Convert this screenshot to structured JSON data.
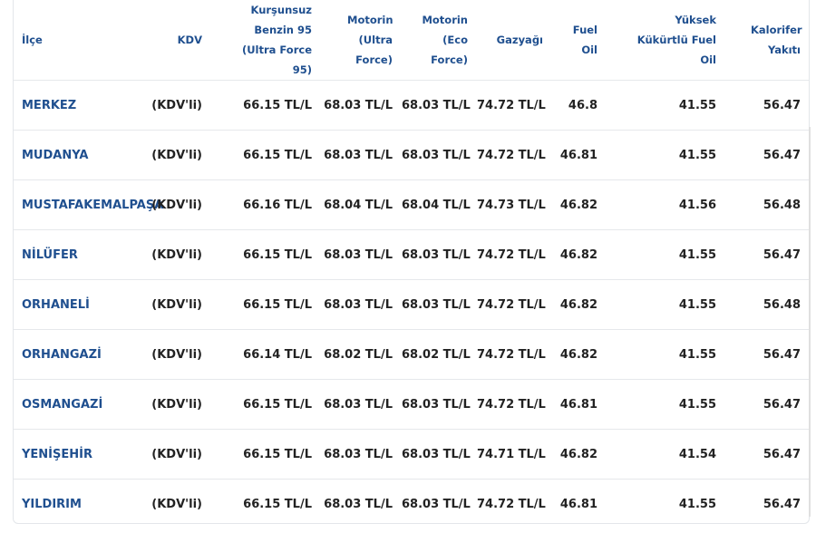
{
  "table": {
    "headers": [
      "İlçe",
      "KDV",
      "Kurşunsuz Benzin 95 (Ultra Force 95)",
      "Motorin (Ultra Force)",
      "Motorin (Eco Force)",
      "Gazyağı",
      "Fuel Oil",
      "Yüksek Kükürtlü Fuel Oil",
      "Kalorifer Yakıtı"
    ],
    "rows": [
      [
        "MERKEZ",
        "(KDV'li)",
        "66.15 TL/L",
        "68.03 TL/L",
        "68.03 TL/L",
        "74.72 TL/L",
        "46.8",
        "41.55",
        "56.47"
      ],
      [
        "MUDANYA",
        "(KDV'li)",
        "66.15 TL/L",
        "68.03 TL/L",
        "68.03 TL/L",
        "74.72 TL/L",
        "46.81",
        "41.55",
        "56.47"
      ],
      [
        "MUSTAFAKEMALPAŞA",
        "(KDV'li)",
        "66.16 TL/L",
        "68.04 TL/L",
        "68.04 TL/L",
        "74.73 TL/L",
        "46.82",
        "41.56",
        "56.48"
      ],
      [
        "NİLÜFER",
        "(KDV'li)",
        "66.15 TL/L",
        "68.03 TL/L",
        "68.03 TL/L",
        "74.72 TL/L",
        "46.82",
        "41.55",
        "56.47"
      ],
      [
        "ORHANELİ",
        "(KDV'li)",
        "66.15 TL/L",
        "68.03 TL/L",
        "68.03 TL/L",
        "74.72 TL/L",
        "46.82",
        "41.55",
        "56.48"
      ],
      [
        "ORHANGAZİ",
        "(KDV'li)",
        "66.14 TL/L",
        "68.02 TL/L",
        "68.02 TL/L",
        "74.72 TL/L",
        "46.82",
        "41.55",
        "56.47"
      ],
      [
        "OSMANGAZİ",
        "(KDV'li)",
        "66.15 TL/L",
        "68.03 TL/L",
        "68.03 TL/L",
        "74.72 TL/L",
        "46.81",
        "41.55",
        "56.47"
      ],
      [
        "YENİŞEHİR",
        "(KDV'li)",
        "66.15 TL/L",
        "68.03 TL/L",
        "68.03 TL/L",
        "74.71 TL/L",
        "46.82",
        "41.54",
        "56.47"
      ],
      [
        "YILDIRIM",
        "(KDV'li)",
        "66.15 TL/L",
        "68.03 TL/L",
        "68.03 TL/L",
        "74.72 TL/L",
        "46.81",
        "41.55",
        "56.47"
      ]
    ]
  }
}
